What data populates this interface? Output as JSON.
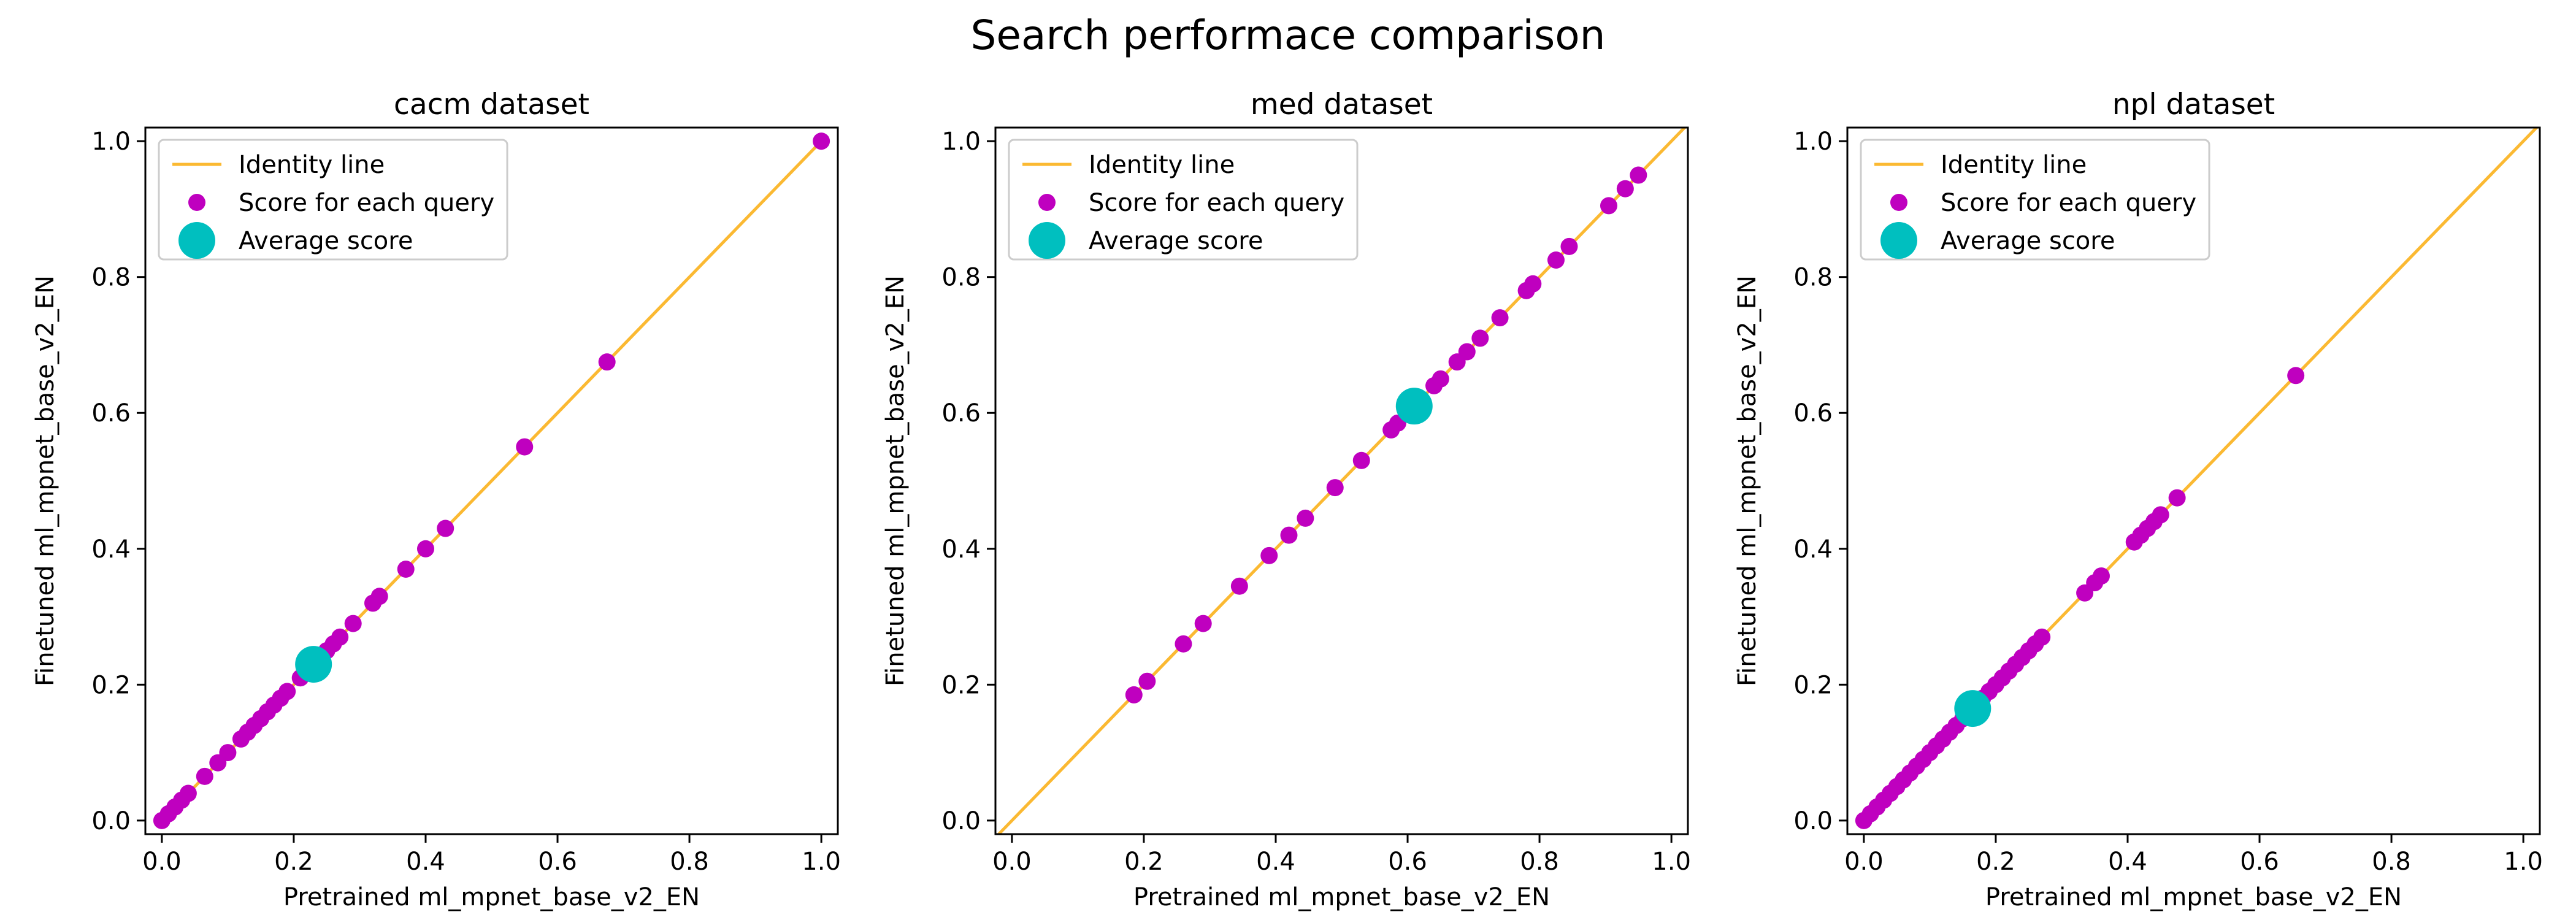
{
  "figure": {
    "title": "Search performace comparison",
    "colors": {
      "identity": "#FBB932",
      "query": "#BF00BF",
      "average": "#00BFBF",
      "axes": "#000000",
      "legend_border": "#CCCCCC"
    }
  },
  "chart_data": [
    {
      "type": "scatter",
      "title": "cacm dataset",
      "xlabel": "Pretrained ml_mpnet_base_v2_EN",
      "ylabel": "Finetuned ml_mpnet_base_v2_EN",
      "xlim": [
        -0.025,
        1.025
      ],
      "ylim": [
        -0.02,
        1.02
      ],
      "xticks": [
        "0.0",
        "0.2",
        "0.4",
        "0.6",
        "0.8",
        "1.0"
      ],
      "yticks": [
        "0.0",
        "0.2",
        "0.4",
        "0.6",
        "0.8",
        "1.0"
      ],
      "identity_line": [
        0.0,
        1.0
      ],
      "legend": {
        "placement": "upper-left",
        "entries": [
          "Identity line",
          "Score for each query",
          "Average score"
        ]
      },
      "series": [
        {
          "name": "Score for each query",
          "points": [
            [
              0.0,
              0.0
            ],
            [
              0.01,
              0.01
            ],
            [
              0.02,
              0.02
            ],
            [
              0.03,
              0.03
            ],
            [
              0.04,
              0.04
            ],
            [
              0.065,
              0.065
            ],
            [
              0.085,
              0.085
            ],
            [
              0.1,
              0.1
            ],
            [
              0.12,
              0.12
            ],
            [
              0.13,
              0.13
            ],
            [
              0.14,
              0.14
            ],
            [
              0.15,
              0.15
            ],
            [
              0.16,
              0.16
            ],
            [
              0.17,
              0.17
            ],
            [
              0.18,
              0.18
            ],
            [
              0.19,
              0.19
            ],
            [
              0.21,
              0.21
            ],
            [
              0.23,
              0.23
            ],
            [
              0.24,
              0.24
            ],
            [
              0.25,
              0.25
            ],
            [
              0.26,
              0.26
            ],
            [
              0.27,
              0.27
            ],
            [
              0.29,
              0.29
            ],
            [
              0.32,
              0.32
            ],
            [
              0.33,
              0.33
            ],
            [
              0.37,
              0.37
            ],
            [
              0.4,
              0.4
            ],
            [
              0.43,
              0.43
            ],
            [
              0.55,
              0.55
            ],
            [
              0.675,
              0.675
            ],
            [
              1.0,
              1.0
            ]
          ]
        },
        {
          "name": "Average score",
          "points": [
            [
              0.23,
              0.23
            ]
          ]
        }
      ]
    },
    {
      "type": "scatter",
      "title": "med dataset",
      "xlabel": "Pretrained ml_mpnet_base_v2_EN",
      "ylabel": "Finetuned ml_mpnet_base_v2_EN",
      "xlim": [
        -0.025,
        1.025
      ],
      "ylim": [
        -0.02,
        1.02
      ],
      "xticks": [
        "0.0",
        "0.2",
        "0.4",
        "0.6",
        "0.8",
        "1.0"
      ],
      "yticks": [
        "0.0",
        "0.2",
        "0.4",
        "0.6",
        "0.8",
        "1.0"
      ],
      "identity_line": [
        -0.025,
        1.025
      ],
      "legend": {
        "placement": "upper-left",
        "entries": [
          "Identity line",
          "Score for each query",
          "Average score"
        ]
      },
      "series": [
        {
          "name": "Score for each query",
          "points": [
            [
              0.185,
              0.185
            ],
            [
              0.205,
              0.205
            ],
            [
              0.26,
              0.26
            ],
            [
              0.29,
              0.29
            ],
            [
              0.345,
              0.345
            ],
            [
              0.39,
              0.39
            ],
            [
              0.42,
              0.42
            ],
            [
              0.445,
              0.445
            ],
            [
              0.49,
              0.49
            ],
            [
              0.53,
              0.53
            ],
            [
              0.575,
              0.575
            ],
            [
              0.585,
              0.585
            ],
            [
              0.6,
              0.6
            ],
            [
              0.62,
              0.62
            ],
            [
              0.64,
              0.64
            ],
            [
              0.65,
              0.65
            ],
            [
              0.675,
              0.675
            ],
            [
              0.69,
              0.69
            ],
            [
              0.71,
              0.71
            ],
            [
              0.74,
              0.74
            ],
            [
              0.78,
              0.78
            ],
            [
              0.79,
              0.79
            ],
            [
              0.825,
              0.825
            ],
            [
              0.845,
              0.845
            ],
            [
              0.905,
              0.905
            ],
            [
              0.93,
              0.93
            ],
            [
              0.95,
              0.95
            ]
          ]
        },
        {
          "name": "Average score",
          "points": [
            [
              0.61,
              0.61
            ]
          ]
        }
      ]
    },
    {
      "type": "scatter",
      "title": "npl dataset",
      "xlabel": "Pretrained ml_mpnet_base_v2_EN",
      "ylabel": "Finetuned ml_mpnet_base_v2_EN",
      "xlim": [
        -0.025,
        1.025
      ],
      "ylim": [
        -0.02,
        1.02
      ],
      "xticks": [
        "0.0",
        "0.2",
        "0.4",
        "0.6",
        "0.8",
        "1.0"
      ],
      "yticks": [
        "0.0",
        "0.2",
        "0.4",
        "0.6",
        "0.8",
        "1.0"
      ],
      "identity_line": [
        0.0,
        1.025
      ],
      "legend": {
        "placement": "upper-left",
        "entries": [
          "Identity line",
          "Score for each query",
          "Average score"
        ]
      },
      "series": [
        {
          "name": "Score for each query",
          "points": [
            [
              0.0,
              0.0
            ],
            [
              0.01,
              0.01
            ],
            [
              0.02,
              0.02
            ],
            [
              0.03,
              0.03
            ],
            [
              0.04,
              0.04
            ],
            [
              0.05,
              0.05
            ],
            [
              0.06,
              0.06
            ],
            [
              0.07,
              0.07
            ],
            [
              0.08,
              0.08
            ],
            [
              0.09,
              0.09
            ],
            [
              0.1,
              0.1
            ],
            [
              0.11,
              0.11
            ],
            [
              0.12,
              0.12
            ],
            [
              0.13,
              0.13
            ],
            [
              0.14,
              0.14
            ],
            [
              0.15,
              0.15
            ],
            [
              0.16,
              0.16
            ],
            [
              0.17,
              0.17
            ],
            [
              0.18,
              0.18
            ],
            [
              0.19,
              0.19
            ],
            [
              0.2,
              0.2
            ],
            [
              0.21,
              0.21
            ],
            [
              0.22,
              0.22
            ],
            [
              0.23,
              0.23
            ],
            [
              0.24,
              0.24
            ],
            [
              0.25,
              0.25
            ],
            [
              0.26,
              0.26
            ],
            [
              0.27,
              0.27
            ],
            [
              0.335,
              0.335
            ],
            [
              0.35,
              0.35
            ],
            [
              0.36,
              0.36
            ],
            [
              0.41,
              0.41
            ],
            [
              0.42,
              0.42
            ],
            [
              0.43,
              0.43
            ],
            [
              0.44,
              0.44
            ],
            [
              0.45,
              0.45
            ],
            [
              0.475,
              0.475
            ],
            [
              0.655,
              0.655
            ]
          ]
        },
        {
          "name": "Average score",
          "points": [
            [
              0.165,
              0.165
            ]
          ]
        }
      ]
    }
  ]
}
